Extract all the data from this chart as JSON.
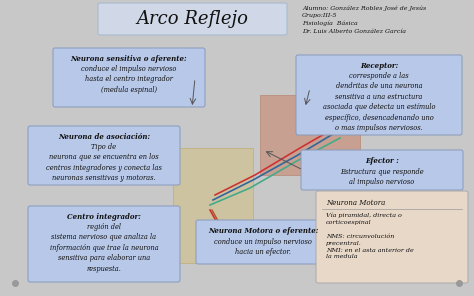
{
  "title": "Arco Reflejo",
  "bg_color": "#c8c8c8",
  "title_box_color": "#d0d8e8",
  "blue_box_color": "#b8c8e8",
  "pink_box_color": "#e8d8c8",
  "top_right_text": "Alumno: González Robles José de Jesús\nGrupo:III-5\nFisiología  Básica\nDr. Luis Alberto González García",
  "box1_title": "Neurona sensitiva o aferente:",
  "box1_body": "conduce el impulso nervioso\nhasta el centro integrador\n(medula espinal)",
  "box2_title": "Neurona de asociación:",
  "box2_body": "Tipo de\nneurona que se encuentra en los\ncentros integradores y conecta las\nneuronas sensitivas y motoras.",
  "box3_title": "Centro integrador:",
  "box3_body": "región del\nsistema nervioso que analiza la\ninformación que trae la neurona\nsensitiva para elaborar una\nrespuesta.",
  "box4_title": "Neurona Motora o eferente:",
  "box4_body": "conduce un impulso nervioso\nhacia un efector.",
  "box5_title": "Receptor:",
  "box5_body": "corresponde a las\ndendritas de una neurona\nsensitiva a una estructura\nasociada que detecta un estímulo\nespecífico, desencadenando uno\no mas impulsos nerviosos.",
  "box6_title": "Efector :",
  "box6_body": "Estructura que responde\nal impulso nervioso",
  "box7_title": "Neurona Motora",
  "box7_body": "Vía piramidal, directa o\ncorticoespinal\n\nNMS: circunvolución\nprecentral.\nNMI: en el asta anterior de\nla medula",
  "arrow_color": "#555555",
  "nerve_colors": [
    "#cc3333",
    "#336699",
    "#44aa88",
    "#aa5522"
  ],
  "dot_color": "#999999"
}
